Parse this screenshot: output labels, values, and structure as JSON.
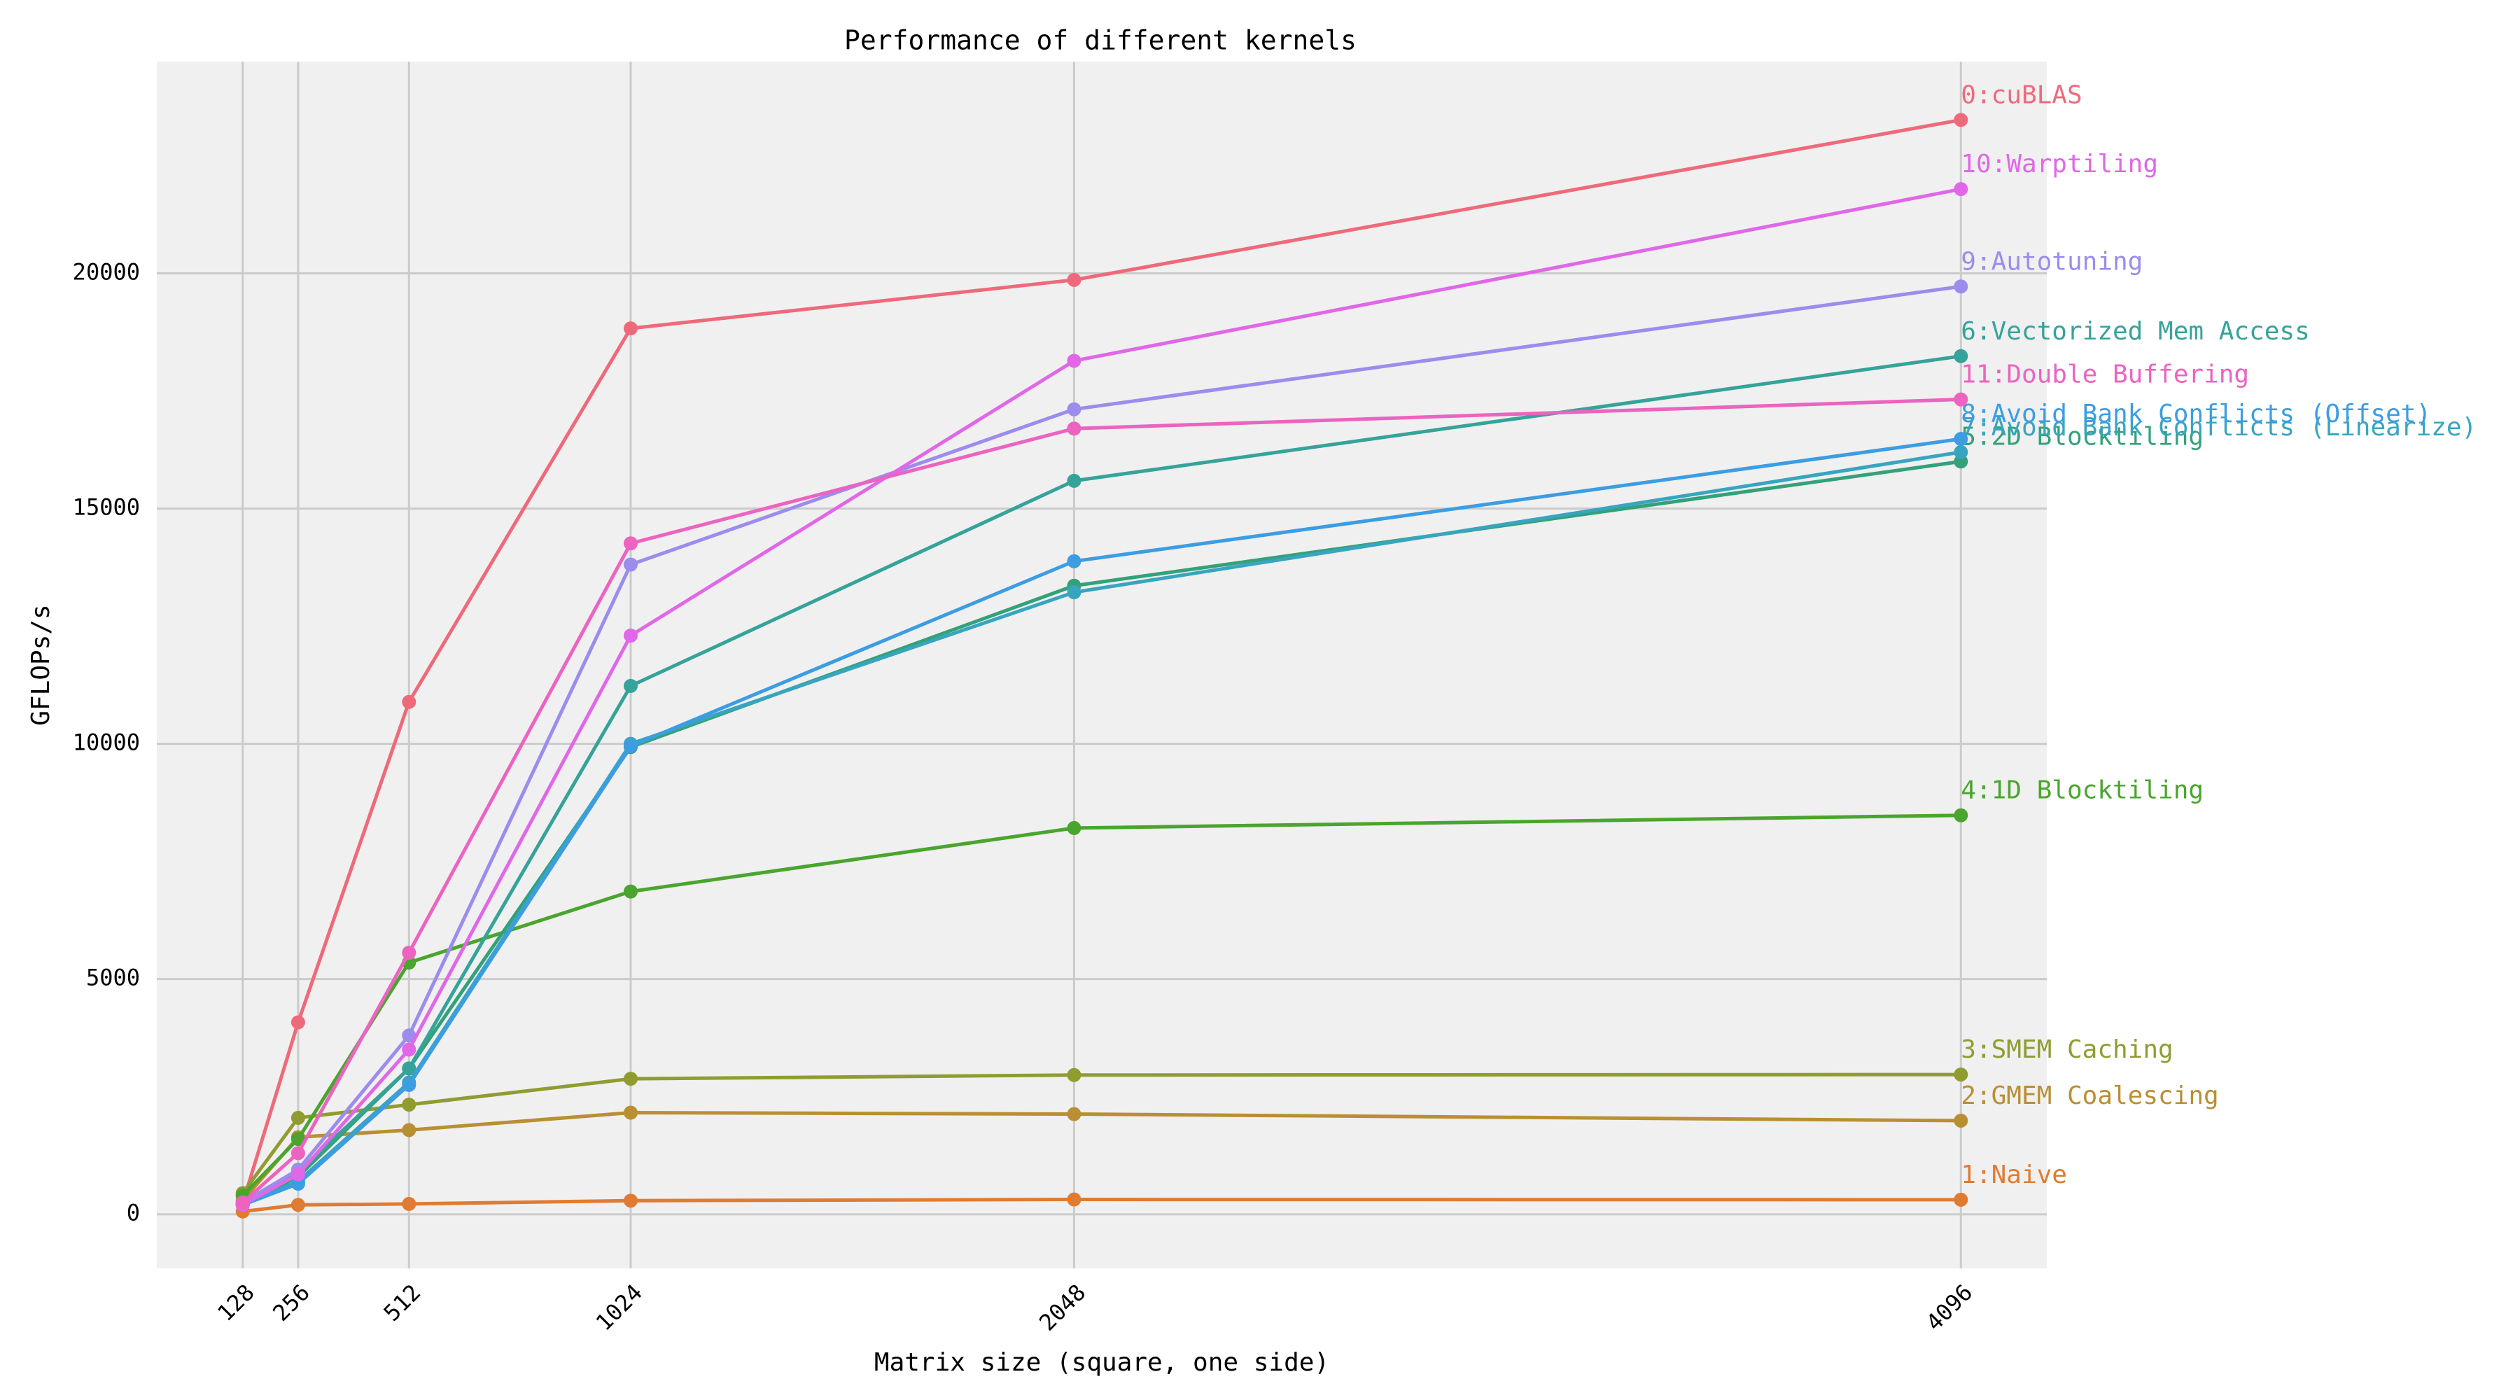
{
  "chart_data": {
    "type": "line",
    "title": "Performance of different kernels",
    "x_label": "Matrix size (square, one side)",
    "y_label": "GFLOPs/s",
    "x": [
      128,
      256,
      512,
      1024,
      2048,
      4096
    ],
    "xlim": [
      -70.4,
      4294.4
    ],
    "xticks": [
      128,
      256,
      512,
      1024,
      2048,
      4096
    ],
    "ylim": [
      -1150,
      24500
    ],
    "yticks": [
      0,
      5000,
      10000,
      15000,
      20000
    ],
    "grid": true,
    "series": [
      {
        "name": "0:cuBLAS",
        "color": "#ee6a7b",
        "values": [
          240,
          4080,
          10890,
          18830,
          19860,
          23260
        ]
      },
      {
        "name": "1:Naive",
        "color": "#e07b32",
        "values": [
          60,
          200,
          220,
          290,
          315,
          310
        ]
      },
      {
        "name": "2:GMEM Coalescing",
        "color": "#b98f33",
        "values": [
          300,
          1640,
          1790,
          2160,
          2130,
          1990
        ]
      },
      {
        "name": "3:SMEM Caching",
        "color": "#909c30",
        "values": [
          450,
          2050,
          2330,
          2880,
          2960,
          2970
        ]
      },
      {
        "name": "4:1D Blocktiling",
        "color": "#4aa52e",
        "values": [
          400,
          1600,
          5350,
          6860,
          8210,
          8480
        ]
      },
      {
        "name": "5:2D Blocktiling",
        "color": "#33a17a",
        "values": [
          200,
          800,
          3100,
          9930,
          13360,
          16000
        ]
      },
      {
        "name": "6:Vectorized Mem Access",
        "color": "#36a39a",
        "values": [
          250,
          900,
          3100,
          11230,
          15590,
          18240
        ]
      },
      {
        "name": "7:Avoid Bank Conflicts (Linearize)",
        "color": "#38a5c0",
        "values": [
          200,
          700,
          2800,
          10000,
          13220,
          16200
        ]
      },
      {
        "name": "8:Avoid Bank Conflicts (Offset)",
        "color": "#3c9de2",
        "values": [
          200,
          650,
          2750,
          9950,
          13880,
          16480
        ]
      },
      {
        "name": "9:Autotuning",
        "color": "#9b8ced",
        "values": [
          250,
          950,
          3800,
          13810,
          17110,
          19720
        ]
      },
      {
        "name": "10:Warptiling",
        "color": "#e067e8",
        "values": [
          200,
          850,
          3500,
          12300,
          18140,
          21790
        ]
      },
      {
        "name": "11:Double Buffering",
        "color": "#ec63c0",
        "values": [
          250,
          1300,
          5560,
          14260,
          16700,
          17320
        ]
      }
    ]
  }
}
